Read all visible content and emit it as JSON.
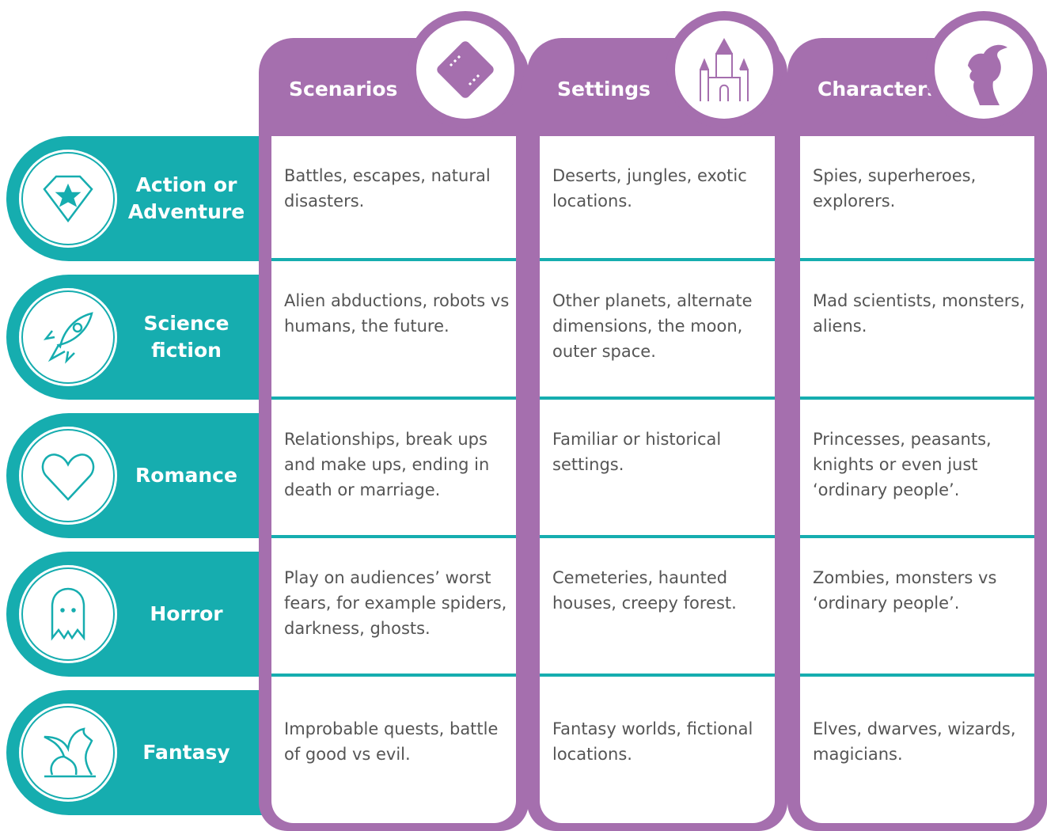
{
  "columns": [
    "Scenarios",
    "Settings",
    "Characters"
  ],
  "rows": [
    {
      "label": "Action or Adventure",
      "cells": [
        "Battles, escapes, natural disasters.",
        "Deserts, jungles, exotic locations.",
        "Spies, superheroes, explorers."
      ]
    },
    {
      "label": "Science fiction",
      "cells": [
        "Alien abductions, robots vs humans, the future.",
        "Other planets, alternate dimensions, the moon, outer space.",
        "Mad scientists, monsters, aliens."
      ]
    },
    {
      "label": "Romance",
      "cells": [
        "Relationships, break ups and make ups, ending in death or marriage.",
        "Familiar or historical settings.",
        "Princesses, peasants, knights or even just ‘ordinary people’."
      ]
    },
    {
      "label": "Horror",
      "cells": [
        "Play on audiences’ worst fears, for example spiders, darkness, ghosts.",
        "Cemeteries, haunted houses, creepy forest.",
        "Zombies, monsters vs ‘ordinary people’."
      ]
    },
    {
      "label": "Fantasy",
      "cells": [
        "Improbable quests, battle of good vs evil.",
        "Fantasy worlds, fictional locations.",
        "Elves, dwarves, wizards, magicians."
      ]
    }
  ]
}
